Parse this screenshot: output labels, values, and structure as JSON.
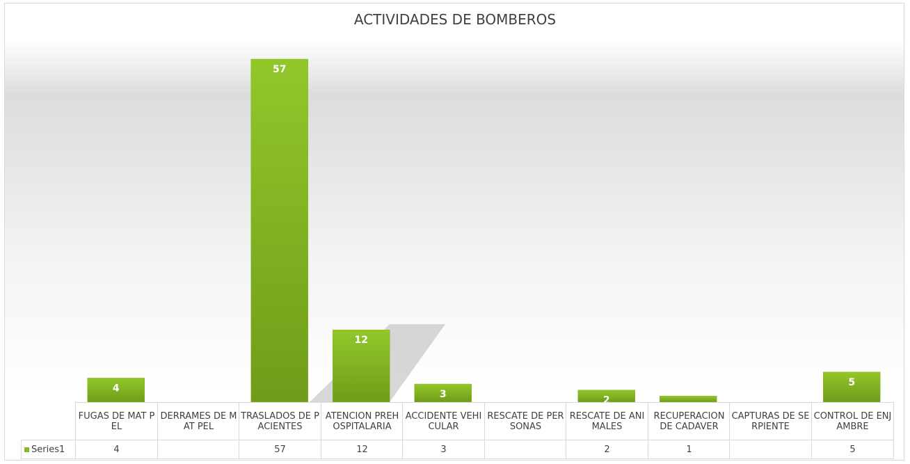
{
  "chart_data": {
    "type": "bar",
    "title": "ACTIVIDADES DE BOMBEROS",
    "categories": [
      "FUGAS DE MAT PEL",
      "DERRAMES DE MAT PEL",
      "TRASLADOS DE PACIENTES",
      "ATENCION PREHOSPITALARIA",
      "ACCIDENTE VEHICULAR",
      "RESCATE DE PERSONAS",
      "RESCATE DE ANIMALES",
      "RECUPERACION DE CADAVER",
      "CAPTURAS DE SERPIENTE",
      "CONTROL DE ENJAMBRE"
    ],
    "series": [
      {
        "name": "Series1",
        "color": "#86b81f",
        "values": [
          4,
          null,
          57,
          12,
          3,
          null,
          2,
          1,
          null,
          5
        ]
      }
    ],
    "ylim": [
      0,
      57
    ],
    "data_table": true
  }
}
